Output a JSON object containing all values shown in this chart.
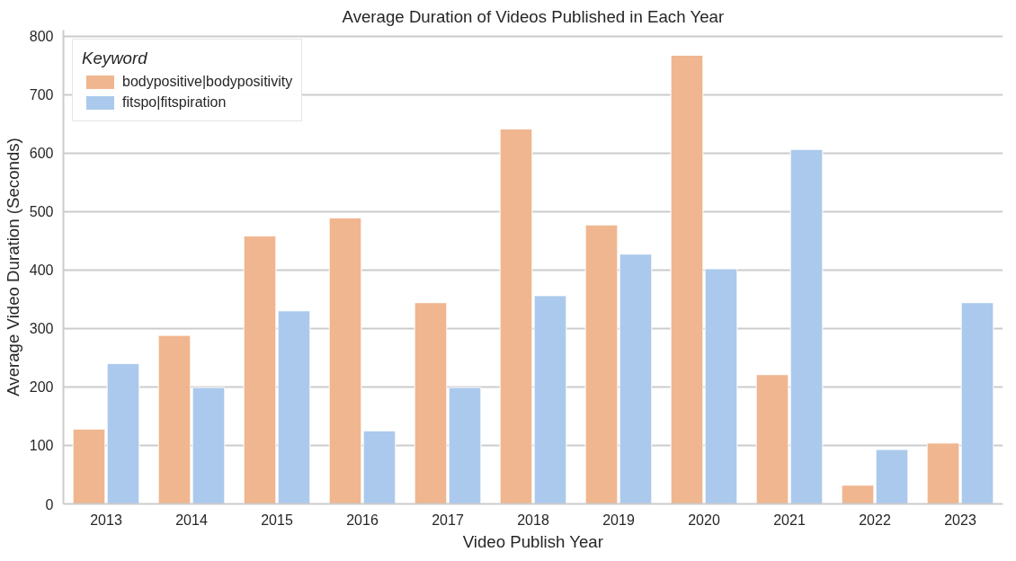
{
  "chart_data": {
    "type": "bar",
    "title": "Average Duration of Videos Published in Each Year",
    "xlabel": "Video Publish Year",
    "ylabel": "Average Video Duration (Seconds)",
    "legend_title": "Keyword",
    "categories": [
      "2013",
      "2014",
      "2015",
      "2016",
      "2017",
      "2018",
      "2019",
      "2020",
      "2021",
      "2022",
      "2023"
    ],
    "series": [
      {
        "name": "bodypositive|bodypositivity",
        "color": "#f0b68f",
        "values": [
          128,
          288,
          458,
          489,
          344,
          641,
          477,
          767,
          221,
          32,
          104
        ]
      },
      {
        "name": "fitspo|fitspiration",
        "color": "#abc9ec",
        "values": [
          240,
          199,
          330,
          125,
          199,
          356,
          427,
          402,
          606,
          93,
          344
        ]
      }
    ],
    "ylim": [
      0,
      810
    ],
    "yticks": [
      0,
      100,
      200,
      300,
      400,
      500,
      600,
      700,
      800
    ],
    "grid": "y",
    "legend": "top left"
  }
}
